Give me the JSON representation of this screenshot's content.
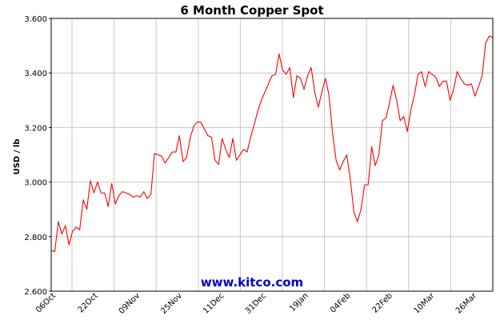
{
  "chart_data": {
    "type": "line",
    "title": "6 Month Copper Spot",
    "ylabel": "USD / lb",
    "xlabel": "",
    "watermark": "www.kitco.com",
    "ylim": [
      2.6,
      3.6
    ],
    "yticks": [
      "2.600",
      "2.800",
      "3.000",
      "3.200",
      "3.400",
      "3.600"
    ],
    "xticks": [
      "06Oct",
      "22Oct",
      "09Nov",
      "25Nov",
      "11Dec",
      "31Dec",
      "19Jan",
      "04Feb",
      "22Feb",
      "10Mar",
      "26Mar"
    ],
    "grid": true,
    "line_color": "#ff0000",
    "watermark_color": "#0000cc",
    "series": [
      {
        "values": [
          2.75,
          2.745,
          2.855,
          2.81,
          2.84,
          2.77,
          2.82,
          2.835,
          2.825,
          2.935,
          2.9,
          3.005,
          2.96,
          3.0,
          2.96,
          2.96,
          2.91,
          2.995,
          2.92,
          2.95,
          2.965,
          2.96,
          2.955,
          2.945,
          2.95,
          2.945,
          2.965,
          2.94,
          2.955,
          3.105,
          3.1,
          3.095,
          3.07,
          3.09,
          3.11,
          3.11,
          3.17,
          3.075,
          3.09,
          3.16,
          3.205,
          3.22,
          3.22,
          3.195,
          3.17,
          3.165,
          3.08,
          3.065,
          3.16,
          3.12,
          3.09,
          3.16,
          3.08,
          3.1,
          3.12,
          3.11,
          3.165,
          3.21,
          3.26,
          3.3,
          3.33,
          3.36,
          3.39,
          3.395,
          3.47,
          3.41,
          3.395,
          3.42,
          3.31,
          3.39,
          3.38,
          3.34,
          3.39,
          3.42,
          3.33,
          3.275,
          3.33,
          3.38,
          3.32,
          3.18,
          3.08,
          3.045,
          3.075,
          3.1,
          3.01,
          2.89,
          2.855,
          2.9,
          2.99,
          2.99,
          3.13,
          3.06,
          3.1,
          3.225,
          3.235,
          3.29,
          3.355,
          3.3,
          3.225,
          3.24,
          3.185,
          3.265,
          3.32,
          3.395,
          3.405,
          3.35,
          3.405,
          3.395,
          3.385,
          3.35,
          3.37,
          3.37,
          3.3,
          3.34,
          3.405,
          3.38,
          3.36,
          3.355,
          3.36,
          3.315,
          3.35,
          3.39,
          3.51,
          3.535,
          3.53
        ]
      }
    ]
  }
}
